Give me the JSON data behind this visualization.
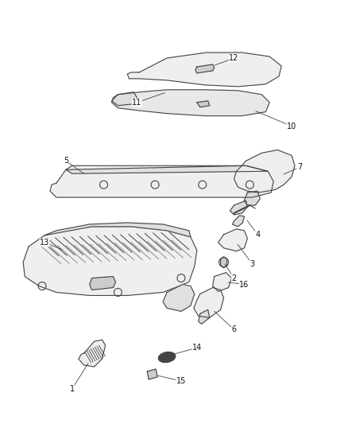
{
  "background_color": "#ffffff",
  "figure_width": 4.38,
  "figure_height": 5.33,
  "dpi": 100,
  "line_color": "#444444",
  "fill_color": "#f2f2f2",
  "label_fontsize": 7,
  "line_width": 0.8
}
